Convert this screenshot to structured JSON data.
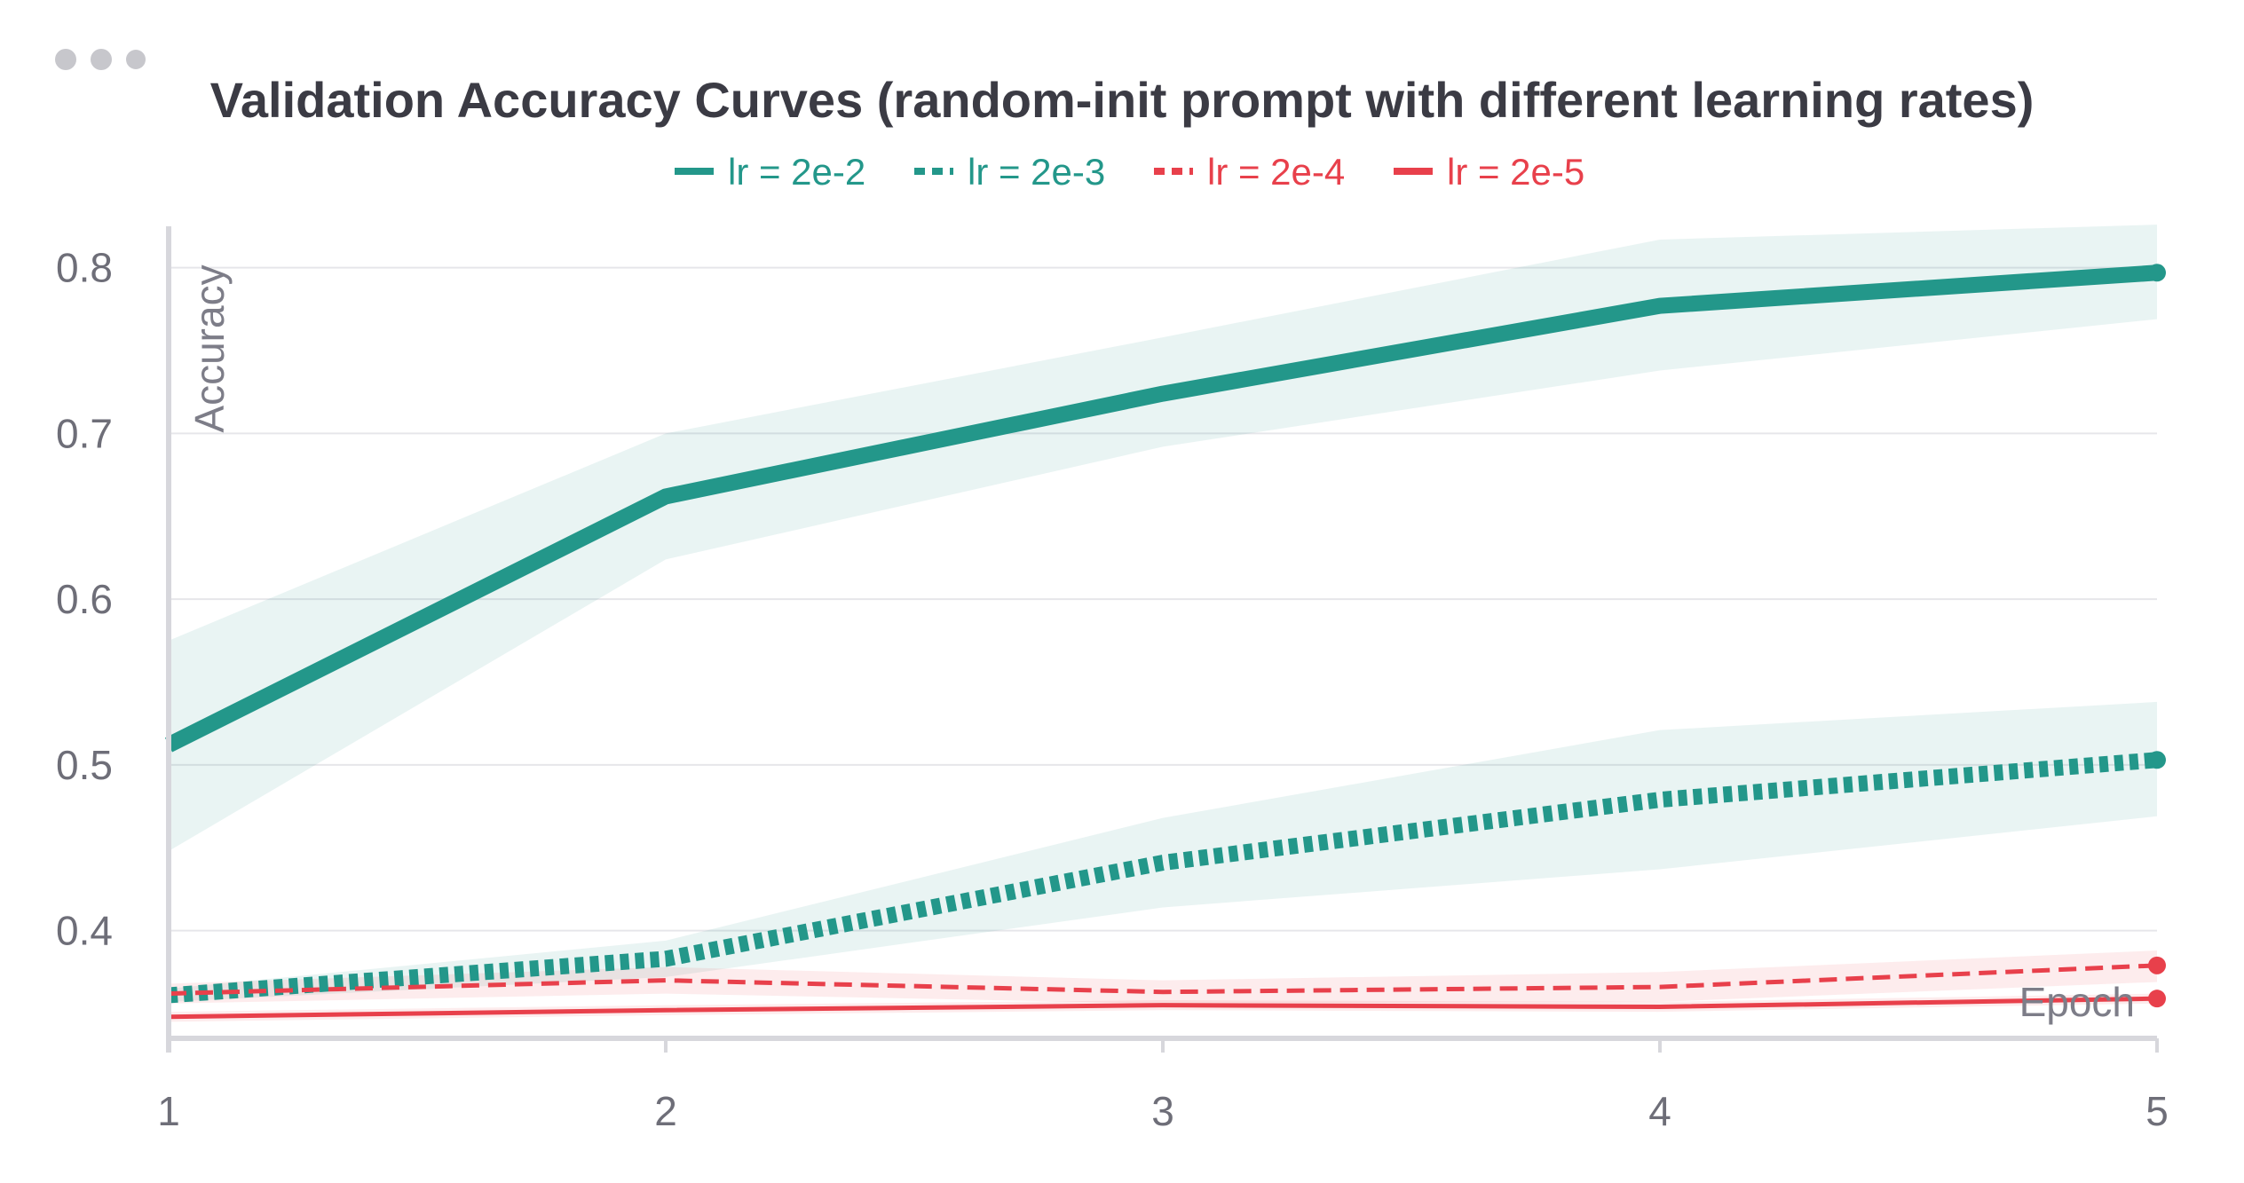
{
  "panel": {
    "menu_icon": "more-horizontal-icon"
  },
  "chart_data": {
    "type": "line",
    "title": "Validation Accuracy Curves (random-init prompt with different learning rates)",
    "xlabel": "Epoch",
    "ylabel": "Accuracy",
    "x": [
      1,
      2,
      3,
      4,
      5
    ],
    "xlim": [
      1,
      5
    ],
    "ylim": [
      0.335,
      0.825
    ],
    "xticks": [
      1,
      2,
      3,
      4,
      5
    ],
    "yticks": [
      0.4,
      0.5,
      0.6,
      0.7,
      0.8
    ],
    "grid": true,
    "legend_position": "top-center",
    "series": [
      {
        "name": "lr = 2e-2",
        "color": "#23978a",
        "style": "solid",
        "values": [
          0.512,
          0.662,
          0.724,
          0.777,
          0.797
        ],
        "band_low": [
          0.448,
          0.624,
          0.692,
          0.738,
          0.769
        ],
        "band_high": [
          0.575,
          0.7,
          0.758,
          0.817,
          0.826
        ]
      },
      {
        "name": "lr = 2e-3",
        "color": "#23978a",
        "style": "dotted",
        "values": [
          0.361,
          0.383,
          0.441,
          0.479,
          0.503
        ],
        "band_low": [
          0.357,
          0.372,
          0.414,
          0.437,
          0.469
        ],
        "band_high": [
          0.365,
          0.394,
          0.468,
          0.521,
          0.538
        ]
      },
      {
        "name": "lr = 2e-4",
        "color": "#e8404b",
        "style": "dashed",
        "values": [
          0.362,
          0.37,
          0.363,
          0.366,
          0.379
        ],
        "band_low": [
          0.356,
          0.362,
          0.356,
          0.357,
          0.369
        ],
        "band_high": [
          0.368,
          0.378,
          0.37,
          0.375,
          0.388
        ]
      },
      {
        "name": "lr = 2e-5",
        "color": "#e8404b",
        "style": "solid-thin",
        "values": [
          0.348,
          0.352,
          0.355,
          0.354,
          0.359
        ],
        "band_low": [
          0.345,
          0.349,
          0.352,
          0.351,
          0.356
        ],
        "band_high": [
          0.351,
          0.355,
          0.358,
          0.357,
          0.362
        ]
      }
    ]
  }
}
